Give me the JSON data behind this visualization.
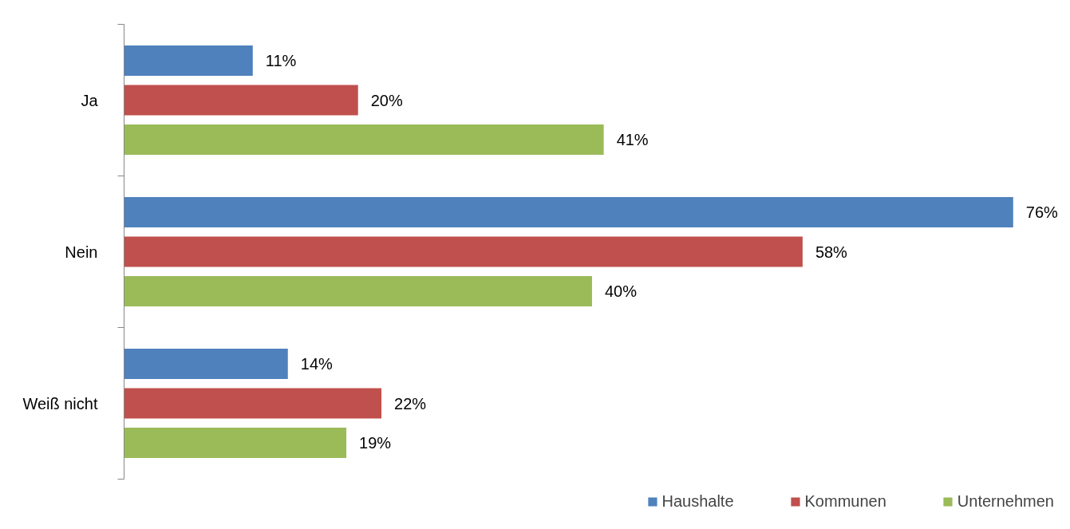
{
  "chart_data": {
    "type": "bar",
    "orientation": "horizontal",
    "categories": [
      "Ja",
      "Nein",
      "Weiß nicht"
    ],
    "series": [
      {
        "name": "Haushalte",
        "color": "#4f81bd",
        "values": [
          11,
          76,
          14
        ],
        "value_labels": [
          "11%",
          "76%",
          "14%"
        ]
      },
      {
        "name": "Kommunen",
        "color": "#c0504d",
        "values": [
          20,
          58,
          22
        ],
        "value_labels": [
          "20%",
          "58%",
          "22%"
        ]
      },
      {
        "name": "Unternehmen",
        "color": "#9bbb59",
        "values": [
          41,
          40,
          19
        ],
        "value_labels": [
          "41%",
          "40%",
          "19%"
        ]
      }
    ],
    "grid": false,
    "legend": "bottom right"
  }
}
